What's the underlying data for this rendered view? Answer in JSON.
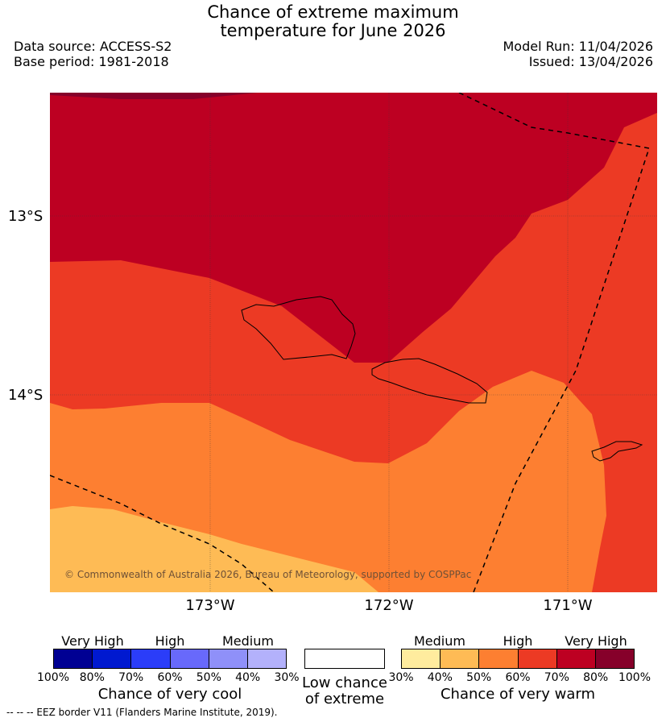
{
  "title": {
    "line1": "Chance of extreme maximum",
    "line2": "temperature for June 2026"
  },
  "meta": {
    "data_source": "Data source: ACCESS-S2",
    "base_period": "Base period: 1981-2018",
    "model_run": "Model Run: 11/04/2026",
    "issued": "Issued: 13/04/2026"
  },
  "map": {
    "lat_labels": [
      "13°S",
      "14°S"
    ],
    "lon_labels": [
      "173°W",
      "172°W",
      "171°W"
    ],
    "copyright": "© Commonwealth of Australia 2026, Bureau of Meteorology, supported by COSPPac",
    "colors": {
      "very_high_80": "#bd0022",
      "very_high_90": "#86002a",
      "high_60": "#ec3a24",
      "medium_50": "#fd7f31",
      "medium_40": "#febb55",
      "light_30": "#ffec9e"
    }
  },
  "legend": {
    "cool": {
      "categories": [
        "Very High",
        "High",
        "Medium"
      ],
      "ticks": [
        "100%",
        "80%",
        "70%",
        "60%",
        "50%",
        "40%",
        "30%"
      ],
      "colors": [
        "#000093",
        "#0019d0",
        "#2b3df9",
        "#6869fb",
        "#8f90f9",
        "#b3b1fb"
      ],
      "title": "Chance of very cool"
    },
    "low": {
      "label_line1": "Low chance",
      "label_line2": "of extreme"
    },
    "warm": {
      "categories": [
        "Medium",
        "High",
        "Very High"
      ],
      "ticks": [
        "30%",
        "40%",
        "50%",
        "60%",
        "70%",
        "80%",
        "100%"
      ],
      "colors": [
        "#ffec9e",
        "#febb55",
        "#fd7f31",
        "#ec3a24",
        "#bd0022",
        "#86002a"
      ],
      "title": "Chance of very warm"
    }
  },
  "footnote": "-- -- -- EEZ border V11 (Flanders Marine Institute, 2019)."
}
